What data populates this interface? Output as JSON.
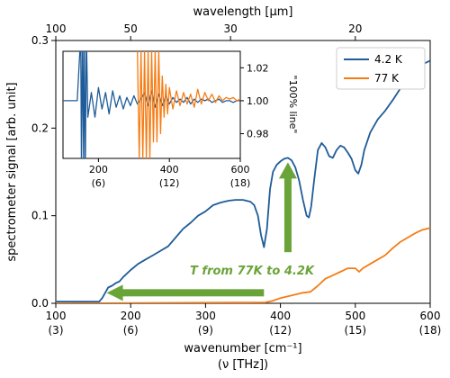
{
  "chart_data": {
    "type": "line",
    "title": "",
    "xlabel": "wavenumber [cm⁻¹]",
    "xlabel2": "(ν [THz])",
    "ylabel": "spectrometer signal [arb. unit]",
    "top_xlabel": "wavelength [µm]",
    "xlim": [
      100,
      600
    ],
    "ylim": [
      0,
      0.3
    ],
    "x_ticks": [
      100,
      200,
      300,
      400,
      500,
      600
    ],
    "x_tick_labels": [
      "100",
      "200",
      "300",
      "400",
      "500",
      "600"
    ],
    "x_tick_sublabels": [
      "(3)",
      "(6)",
      "(9)",
      "(12)",
      "(15)",
      "(18)"
    ],
    "y_ticks": [
      0.0,
      0.1,
      0.2,
      0.3
    ],
    "y_tick_labels": [
      "0.0",
      "0.1",
      "0.2",
      "0.3"
    ],
    "top_ticks": [
      100,
      50,
      30,
      20
    ],
    "top_tick_labels": [
      "100",
      "50",
      "30",
      "20"
    ],
    "legend_position": "upper-right",
    "colors": {
      "4.2 K": "#1f5c99",
      "77 K": "#f57c14",
      "arrow": "#6aa338"
    },
    "series": [
      {
        "name": "4.2 K",
        "x": [
          100,
          150,
          158,
          162,
          166,
          170,
          175,
          180,
          185,
          190,
          200,
          210,
          220,
          230,
          240,
          250,
          260,
          270,
          280,
          290,
          300,
          310,
          320,
          330,
          340,
          350,
          360,
          365,
          370,
          374,
          378,
          382,
          386,
          390,
          395,
          400,
          405,
          410,
          415,
          420,
          425,
          430,
          435,
          438,
          441,
          445,
          450,
          455,
          460,
          465,
          470,
          475,
          480,
          485,
          490,
          495,
          500,
          504,
          508,
          512,
          520,
          530,
          540,
          550,
          560,
          570,
          580,
          590,
          600
        ],
        "y": [
          0.002,
          0.002,
          0.002,
          0.006,
          0.012,
          0.018,
          0.02,
          0.023,
          0.025,
          0.03,
          0.038,
          0.045,
          0.05,
          0.055,
          0.06,
          0.065,
          0.075,
          0.085,
          0.092,
          0.1,
          0.105,
          0.112,
          0.115,
          0.117,
          0.118,
          0.118,
          0.116,
          0.112,
          0.1,
          0.078,
          0.064,
          0.085,
          0.13,
          0.15,
          0.158,
          0.162,
          0.165,
          0.166,
          0.163,
          0.155,
          0.14,
          0.118,
          0.1,
          0.098,
          0.11,
          0.14,
          0.175,
          0.183,
          0.178,
          0.168,
          0.166,
          0.175,
          0.18,
          0.178,
          0.172,
          0.165,
          0.152,
          0.148,
          0.158,
          0.175,
          0.195,
          0.21,
          0.22,
          0.232,
          0.245,
          0.255,
          0.265,
          0.273,
          0.277
        ]
      },
      {
        "name": "77 K",
        "x": [
          100,
          380,
          390,
          400,
          410,
          420,
          430,
          440,
          450,
          460,
          470,
          480,
          490,
          500,
          505,
          510,
          520,
          530,
          540,
          550,
          560,
          570,
          580,
          590,
          600
        ],
        "y": [
          0.0,
          0.001,
          0.003,
          0.006,
          0.008,
          0.01,
          0.012,
          0.013,
          0.02,
          0.028,
          0.032,
          0.036,
          0.04,
          0.04,
          0.036,
          0.04,
          0.045,
          0.05,
          0.055,
          0.063,
          0.07,
          0.075,
          0.08,
          0.084,
          0.086
        ]
      }
    ],
    "annotation": {
      "text": "T from 77K to 4.2K",
      "horizontal_arrow": {
        "x_from": 378,
        "x_to": 168,
        "y": 0.012
      },
      "vertical_arrow": {
        "x": 410,
        "y_from": 0.12,
        "y_to": 0.165
      }
    },
    "inset": {
      "type": "line",
      "xlim": [
        100,
        600
      ],
      "ylim": [
        0.965,
        1.03
      ],
      "ylabel": "\"100% line\"",
      "x_ticks": [
        200,
        400,
        600
      ],
      "x_tick_labels": [
        "200",
        "400",
        "600"
      ],
      "x_tick_sublabels": [
        "(6)",
        "(12)",
        "(18)"
      ],
      "y_ticks": [
        0.98,
        1.0,
        1.02
      ],
      "y_tick_labels": [
        "0.98",
        "1.00",
        "1.02"
      ],
      "series": [
        {
          "name": "4.2 K",
          "x": [
            100,
            120,
            140,
            150,
            152,
            155,
            158,
            160,
            163,
            166,
            170,
            180,
            190,
            200,
            210,
            220,
            230,
            240,
            250,
            260,
            270,
            280,
            290,
            300,
            310,
            320,
            330,
            340,
            350,
            360,
            370,
            380,
            390,
            400,
            410,
            420,
            430,
            440,
            450,
            460,
            470,
            480,
            490,
            500,
            510,
            520,
            530,
            540,
            550,
            560,
            570,
            580,
            590,
            600
          ],
          "y": [
            1.0,
            1.0,
            1.0,
            1.04,
            0.96,
            1.04,
            0.96,
            1.04,
            0.96,
            1.04,
            0.99,
            1.005,
            0.99,
            1.008,
            0.995,
            1.005,
            0.992,
            1.006,
            0.996,
            1.003,
            0.995,
            1.002,
            0.997,
            1.003,
            0.998,
            1.001,
            1.005,
            0.997,
            1.006,
            0.996,
            1.004,
            0.997,
            1.003,
            0.998,
            1.002,
            0.999,
            1.001,
            0.999,
            1.002,
            0.998,
            1.001,
            0.999,
            1.001,
            1.0,
            1.001,
            0.999,
            1.0,
            1.001,
            0.999,
            1.0,
            1.0,
            0.999,
            1.0,
            1.0
          ]
        },
        {
          "name": "77 K",
          "x": [
            310,
            315,
            320,
            325,
            330,
            335,
            340,
            345,
            350,
            355,
            360,
            365,
            370,
            375,
            380,
            385,
            390,
            395,
            400,
            410,
            420,
            430,
            440,
            450,
            460,
            470,
            480,
            490,
            500,
            510,
            520,
            530,
            540,
            550,
            560,
            570,
            580,
            590,
            600
          ],
          "y": [
            1.03,
            0.965,
            1.03,
            0.965,
            1.03,
            0.965,
            1.03,
            0.965,
            1.03,
            0.975,
            1.03,
            0.975,
            1.03,
            0.98,
            1.015,
            0.99,
            1.01,
            0.992,
            1.008,
            0.995,
            1.006,
            0.997,
            1.005,
            0.998,
            1.004,
            0.996,
            1.007,
            0.998,
            1.005,
            1.0,
            1.004,
            0.999,
            1.003,
            1.0,
            1.002,
            1.001,
            1.002,
            1.0,
            1.001
          ]
        }
      ]
    }
  }
}
